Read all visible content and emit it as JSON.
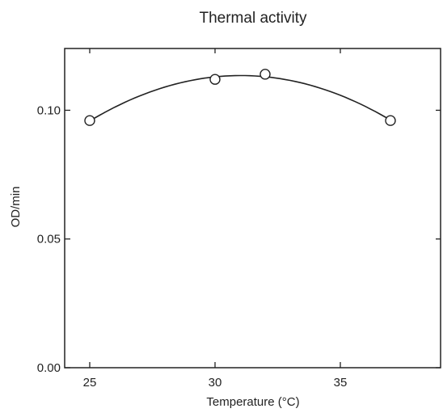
{
  "chart_data": {
    "type": "line",
    "title": "Thermal activity",
    "xlabel": "Temperature (°C)",
    "ylabel": "OD/min",
    "xlim": [
      24,
      39
    ],
    "ylim": [
      0.0,
      0.124
    ],
    "x_ticks": [
      25,
      30,
      35
    ],
    "y_ticks": [
      0.0,
      0.05,
      0.1
    ],
    "y_tick_labels": [
      "0.00",
      "0.05",
      "0.10"
    ],
    "grid": false,
    "marker": "open-circle",
    "curve": "smooth-fit",
    "series": [
      {
        "x": [
          25,
          30,
          32,
          37
        ],
        "y": [
          0.096,
          0.112,
          0.114,
          0.096
        ]
      }
    ]
  }
}
